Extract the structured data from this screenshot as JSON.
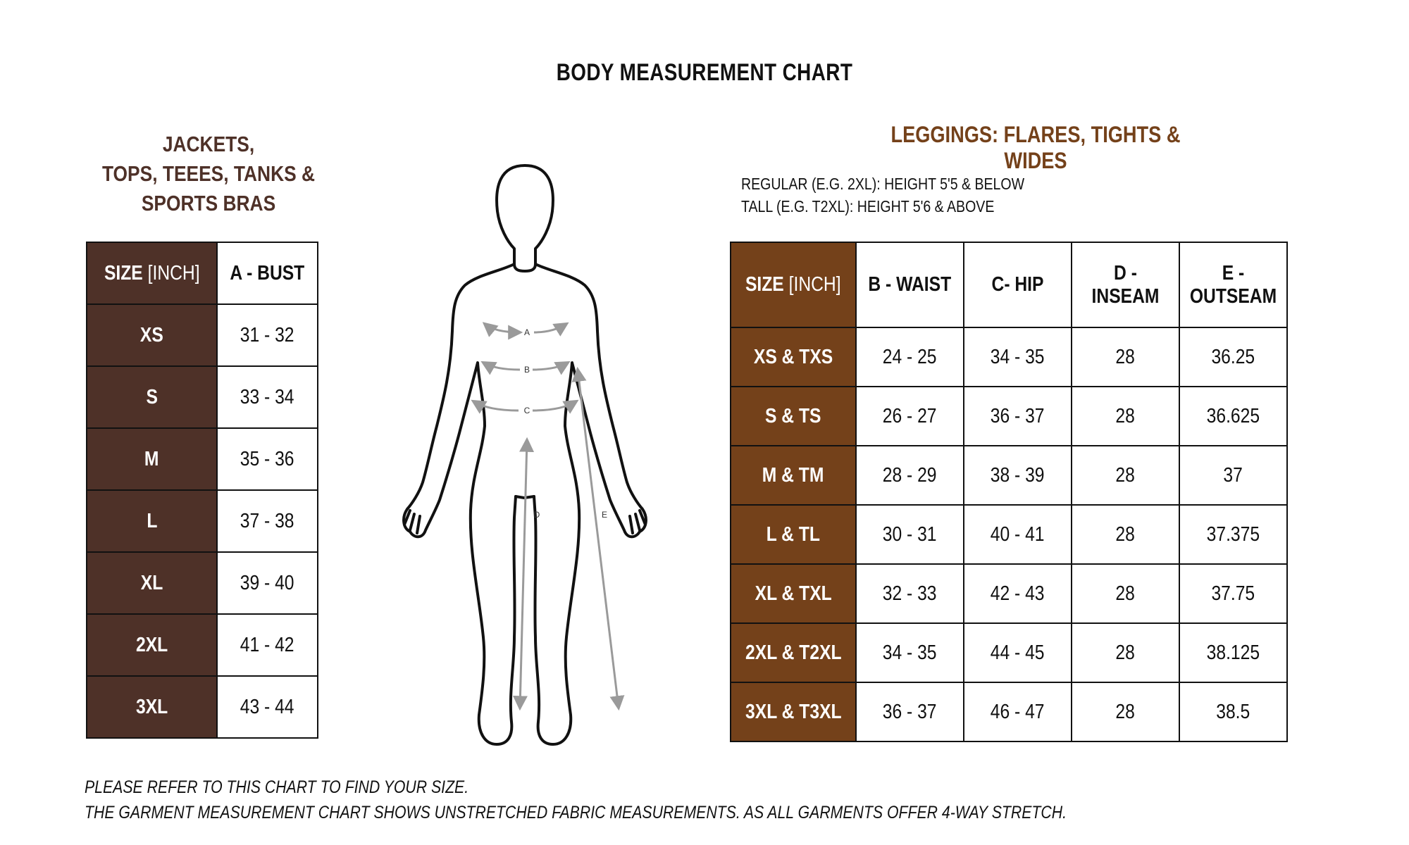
{
  "title": "BODY MEASUREMENT CHART",
  "left_section": {
    "title_lines": [
      "JACKETS,",
      "TOPS, TEEES, TANKS &",
      "SPORTS BRAS"
    ],
    "headers": {
      "size": "SIZE",
      "size_unit": "[INCH]",
      "bust": "A - BUST"
    },
    "rows": [
      {
        "size": "XS",
        "bust": "31 - 32"
      },
      {
        "size": "S",
        "bust": "33 - 34"
      },
      {
        "size": "M",
        "bust": "35 - 36"
      },
      {
        "size": "L",
        "bust": "37 - 38"
      },
      {
        "size": "XL",
        "bust": "39 - 40"
      },
      {
        "size": "2XL",
        "bust": "41 - 42"
      },
      {
        "size": "3XL",
        "bust": "43 - 44"
      }
    ]
  },
  "figure": {
    "labels": {
      "a": "A",
      "b": "B",
      "c": "C",
      "d": "D",
      "e": "E"
    }
  },
  "right_section": {
    "title": "LEGGINGS: FLARES, TIGHTS & WIDES",
    "notes": [
      "REGULAR (E.G. 2XL): HEIGHT 5'5 & BELOW",
      "TALL (E.G. T2XL): HEIGHT 5'6 & ABOVE"
    ],
    "headers": {
      "size": "SIZE",
      "size_unit": "[INCH]",
      "waist": "B - WAIST",
      "hip": "C- HIP",
      "inseam": "D - INSEAM",
      "outseam": "E - OUTSEAM"
    },
    "rows": [
      {
        "size": "XS & TXS",
        "waist": "24 - 25",
        "hip": "34 - 35",
        "inseam": "28",
        "outseam": "36.25"
      },
      {
        "size": "S & TS",
        "waist": "26 - 27",
        "hip": "36 - 37",
        "inseam": "28",
        "outseam": "36.625"
      },
      {
        "size": "M & TM",
        "waist": "28 - 29",
        "hip": "38 - 39",
        "inseam": "28",
        "outseam": "37"
      },
      {
        "size": "L & TL",
        "waist": "30 - 31",
        "hip": "40 - 41",
        "inseam": "28",
        "outseam": "37.375"
      },
      {
        "size": "XL & TXL",
        "waist": "32 - 33",
        "hip": "42 - 43",
        "inseam": "28",
        "outseam": "37.75"
      },
      {
        "size": "2XL & T2XL",
        "waist": "34 - 35",
        "hip": "44 - 45",
        "inseam": "28",
        "outseam": "38.125"
      },
      {
        "size": "3XL & T3XL",
        "waist": "36 - 37",
        "hip": "46 - 47",
        "inseam": "28",
        "outseam": "38.5"
      }
    ]
  },
  "footer": [
    "PLEASE REFER TO THIS CHART TO FIND YOUR SIZE.",
    "THE GARMENT MEASUREMENT CHART SHOWS UNSTRETCHED FABRIC MEASUREMENTS. AS ALL GARMENTS OFFER 4-WAY STRETCH."
  ],
  "colors": {
    "left_accent": "#4e3128",
    "right_accent": "#74411a",
    "arrow_gray": "#9a9a9a"
  }
}
